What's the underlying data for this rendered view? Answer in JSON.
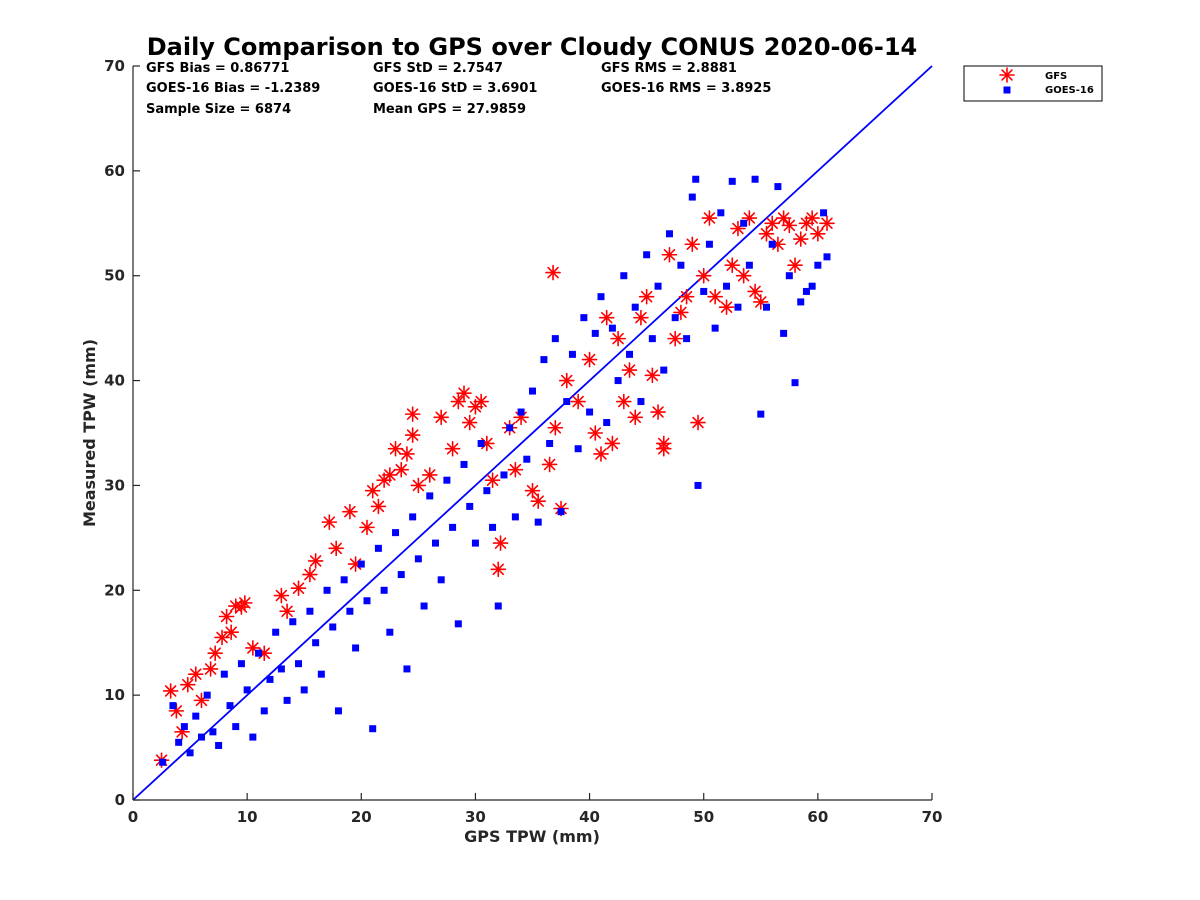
{
  "chart_data": {
    "type": "scatter",
    "title": "Daily Comparison to GPS over Cloudy CONUS 2020-06-14",
    "xlabel": "GPS TPW (mm)",
    "ylabel": "Measured TPW (mm)",
    "xlim": [
      0,
      70
    ],
    "ylim": [
      0,
      70
    ],
    "xticks": [
      "0",
      "10",
      "20",
      "30",
      "40",
      "50",
      "60",
      "70"
    ],
    "yticks": [
      "0",
      "10",
      "20",
      "30",
      "40",
      "50",
      "60",
      "70"
    ],
    "grid": false,
    "legend_position": "outside-top-right",
    "stats": [
      [
        "GFS Bias = 0.86771",
        "GFS StD = 2.7547",
        "GFS RMS = 2.8881"
      ],
      [
        "GOES-16 Bias = -1.2389",
        "GOES-16 StD = 3.6901",
        "GOES-16 RMS = 3.8925"
      ],
      [
        "Sample Size = 6874",
        "Mean GPS = 27.9859",
        ""
      ]
    ],
    "reference_line": {
      "name": "1:1",
      "x": [
        0,
        70
      ],
      "y": [
        0,
        70
      ],
      "color": "#0000ff"
    },
    "series": [
      {
        "name": "GFS",
        "marker": "asterisk",
        "color": "#ff0000",
        "points": [
          [
            2.5,
            3.8
          ],
          [
            3.3,
            10.4
          ],
          [
            3.8,
            8.5
          ],
          [
            4.3,
            6.5
          ],
          [
            4.8,
            11.0
          ],
          [
            5.5,
            12.0
          ],
          [
            6.0,
            9.5
          ],
          [
            6.8,
            12.5
          ],
          [
            7.2,
            14.0
          ],
          [
            7.8,
            15.5
          ],
          [
            8.2,
            17.5
          ],
          [
            8.6,
            16.0
          ],
          [
            9.0,
            18.5
          ],
          [
            9.5,
            18.4
          ],
          [
            9.8,
            18.8
          ],
          [
            10.5,
            14.5
          ],
          [
            11.5,
            14.0
          ],
          [
            13.0,
            19.5
          ],
          [
            13.5,
            18.0
          ],
          [
            14.5,
            20.2
          ],
          [
            15.5,
            21.5
          ],
          [
            16.0,
            22.8
          ],
          [
            17.2,
            26.5
          ],
          [
            17.8,
            24.0
          ],
          [
            19.0,
            27.5
          ],
          [
            19.5,
            22.5
          ],
          [
            20.5,
            26.0
          ],
          [
            21.0,
            29.5
          ],
          [
            21.5,
            28.0
          ],
          [
            22.0,
            30.5
          ],
          [
            22.5,
            31.0
          ],
          [
            23.0,
            33.5
          ],
          [
            23.5,
            31.5
          ],
          [
            24.0,
            33.0
          ],
          [
            24.5,
            36.8
          ],
          [
            24.5,
            34.8
          ],
          [
            25.0,
            30.0
          ],
          [
            26.0,
            31.0
          ],
          [
            27.0,
            36.5
          ],
          [
            28.0,
            33.5
          ],
          [
            28.5,
            38.0
          ],
          [
            29.0,
            38.8
          ],
          [
            29.5,
            36.0
          ],
          [
            30.0,
            37.5
          ],
          [
            30.5,
            38.0
          ],
          [
            31.0,
            34.0
          ],
          [
            31.5,
            30.5
          ],
          [
            32.0,
            22.0
          ],
          [
            32.2,
            24.5
          ],
          [
            33.0,
            35.5
          ],
          [
            33.5,
            31.5
          ],
          [
            34.0,
            36.5
          ],
          [
            35.0,
            29.5
          ],
          [
            35.5,
            28.5
          ],
          [
            36.5,
            32.0
          ],
          [
            36.8,
            50.3
          ],
          [
            37.0,
            35.5
          ],
          [
            37.5,
            27.8
          ],
          [
            38.0,
            40.0
          ],
          [
            39.0,
            38.0
          ],
          [
            40.0,
            42.0
          ],
          [
            40.5,
            35.0
          ],
          [
            41.0,
            33.0
          ],
          [
            41.5,
            46.0
          ],
          [
            42.0,
            34.0
          ],
          [
            42.5,
            44.0
          ],
          [
            43.0,
            38.0
          ],
          [
            43.5,
            41.0
          ],
          [
            44.0,
            36.5
          ],
          [
            44.5,
            46.0
          ],
          [
            45.0,
            48.0
          ],
          [
            45.5,
            40.5
          ],
          [
            46.0,
            37.0
          ],
          [
            46.5,
            33.5
          ],
          [
            46.5,
            34.0
          ],
          [
            47.0,
            52.0
          ],
          [
            47.5,
            44.0
          ],
          [
            48.0,
            46.5
          ],
          [
            48.5,
            48.0
          ],
          [
            49.0,
            53.0
          ],
          [
            49.5,
            36.0
          ],
          [
            50.0,
            50.0
          ],
          [
            50.5,
            55.5
          ],
          [
            51.0,
            48.0
          ],
          [
            52.0,
            47.0
          ],
          [
            52.5,
            51.0
          ],
          [
            53.0,
            54.5
          ],
          [
            53.5,
            50.0
          ],
          [
            54.0,
            55.5
          ],
          [
            54.5,
            48.5
          ],
          [
            55.0,
            47.5
          ],
          [
            55.5,
            54.0
          ],
          [
            56.0,
            55.0
          ],
          [
            56.5,
            53.0
          ],
          [
            57.0,
            55.5
          ],
          [
            57.5,
            54.8
          ],
          [
            58.0,
            51.0
          ],
          [
            58.5,
            53.5
          ],
          [
            59.0,
            55.0
          ],
          [
            59.5,
            55.5
          ],
          [
            60.0,
            54.0
          ],
          [
            60.8,
            55.0
          ]
        ]
      },
      {
        "name": "GOES-16",
        "marker": "square",
        "color": "#0000ff",
        "points": [
          [
            2.6,
            3.6
          ],
          [
            3.5,
            9.0
          ],
          [
            4.0,
            5.5
          ],
          [
            4.5,
            7.0
          ],
          [
            5.0,
            4.5
          ],
          [
            5.5,
            8.0
          ],
          [
            6.0,
            6.0
          ],
          [
            6.5,
            10.0
          ],
          [
            7.0,
            6.5
          ],
          [
            7.5,
            5.2
          ],
          [
            8.0,
            12.0
          ],
          [
            8.5,
            9.0
          ],
          [
            9.0,
            7.0
          ],
          [
            9.5,
            13.0
          ],
          [
            10.0,
            10.5
          ],
          [
            10.5,
            6.0
          ],
          [
            11.0,
            14.0
          ],
          [
            11.5,
            8.5
          ],
          [
            12.0,
            11.5
          ],
          [
            12.5,
            16.0
          ],
          [
            13.0,
            12.5
          ],
          [
            13.5,
            9.5
          ],
          [
            14.0,
            17.0
          ],
          [
            14.5,
            13.0
          ],
          [
            15.0,
            10.5
          ],
          [
            15.5,
            18.0
          ],
          [
            16.0,
            15.0
          ],
          [
            16.5,
            12.0
          ],
          [
            17.0,
            20.0
          ],
          [
            17.5,
            16.5
          ],
          [
            18.0,
            8.5
          ],
          [
            18.5,
            21.0
          ],
          [
            19.0,
            18.0
          ],
          [
            19.5,
            14.5
          ],
          [
            20.0,
            22.5
          ],
          [
            20.5,
            19.0
          ],
          [
            21.0,
            6.8
          ],
          [
            21.5,
            24.0
          ],
          [
            22.0,
            20.0
          ],
          [
            22.5,
            16.0
          ],
          [
            23.0,
            25.5
          ],
          [
            23.5,
            21.5
          ],
          [
            24.0,
            12.5
          ],
          [
            24.5,
            27.0
          ],
          [
            25.0,
            23.0
          ],
          [
            25.5,
            18.5
          ],
          [
            26.0,
            29.0
          ],
          [
            26.5,
            24.5
          ],
          [
            27.0,
            21.0
          ],
          [
            27.5,
            30.5
          ],
          [
            28.0,
            26.0
          ],
          [
            28.5,
            16.8
          ],
          [
            29.0,
            32.0
          ],
          [
            29.5,
            28.0
          ],
          [
            30.0,
            24.5
          ],
          [
            30.5,
            34.0
          ],
          [
            31.0,
            29.5
          ],
          [
            31.5,
            26.0
          ],
          [
            32.0,
            18.5
          ],
          [
            32.5,
            31.0
          ],
          [
            33.0,
            35.5
          ],
          [
            33.5,
            27.0
          ],
          [
            34.0,
            37.0
          ],
          [
            34.5,
            32.5
          ],
          [
            35.0,
            39.0
          ],
          [
            35.5,
            26.5
          ],
          [
            36.0,
            42.0
          ],
          [
            36.5,
            34.0
          ],
          [
            37.0,
            44.0
          ],
          [
            37.5,
            27.5
          ],
          [
            38.0,
            38.0
          ],
          [
            38.5,
            42.5
          ],
          [
            39.0,
            33.5
          ],
          [
            39.5,
            46.0
          ],
          [
            40.0,
            37.0
          ],
          [
            40.5,
            44.5
          ],
          [
            41.0,
            48.0
          ],
          [
            41.5,
            36.0
          ],
          [
            42.0,
            45.0
          ],
          [
            42.5,
            40.0
          ],
          [
            43.0,
            50.0
          ],
          [
            43.5,
            42.5
          ],
          [
            44.0,
            47.0
          ],
          [
            44.5,
            38.0
          ],
          [
            45.0,
            52.0
          ],
          [
            45.5,
            44.0
          ],
          [
            46.0,
            49.0
          ],
          [
            46.5,
            41.0
          ],
          [
            47.0,
            54.0
          ],
          [
            47.5,
            46.0
          ],
          [
            48.0,
            51.0
          ],
          [
            48.5,
            44.0
          ],
          [
            49.0,
            57.5
          ],
          [
            49.3,
            59.2
          ],
          [
            49.5,
            30.0
          ],
          [
            50.0,
            48.5
          ],
          [
            50.5,
            53.0
          ],
          [
            51.0,
            45.0
          ],
          [
            51.5,
            56.0
          ],
          [
            52.0,
            49.0
          ],
          [
            52.5,
            59.0
          ],
          [
            53.0,
            47.0
          ],
          [
            53.5,
            55.0
          ],
          [
            54.0,
            51.0
          ],
          [
            54.5,
            59.2
          ],
          [
            55.0,
            36.8
          ],
          [
            55.5,
            47.0
          ],
          [
            56.0,
            53.0
          ],
          [
            56.5,
            58.5
          ],
          [
            57.0,
            44.5
          ],
          [
            57.5,
            50.0
          ],
          [
            58.0,
            39.8
          ],
          [
            58.5,
            47.5
          ],
          [
            59.0,
            48.5
          ],
          [
            59.5,
            49.0
          ],
          [
            60.0,
            51.0
          ],
          [
            60.5,
            56.0
          ],
          [
            60.8,
            51.8
          ]
        ]
      }
    ]
  }
}
